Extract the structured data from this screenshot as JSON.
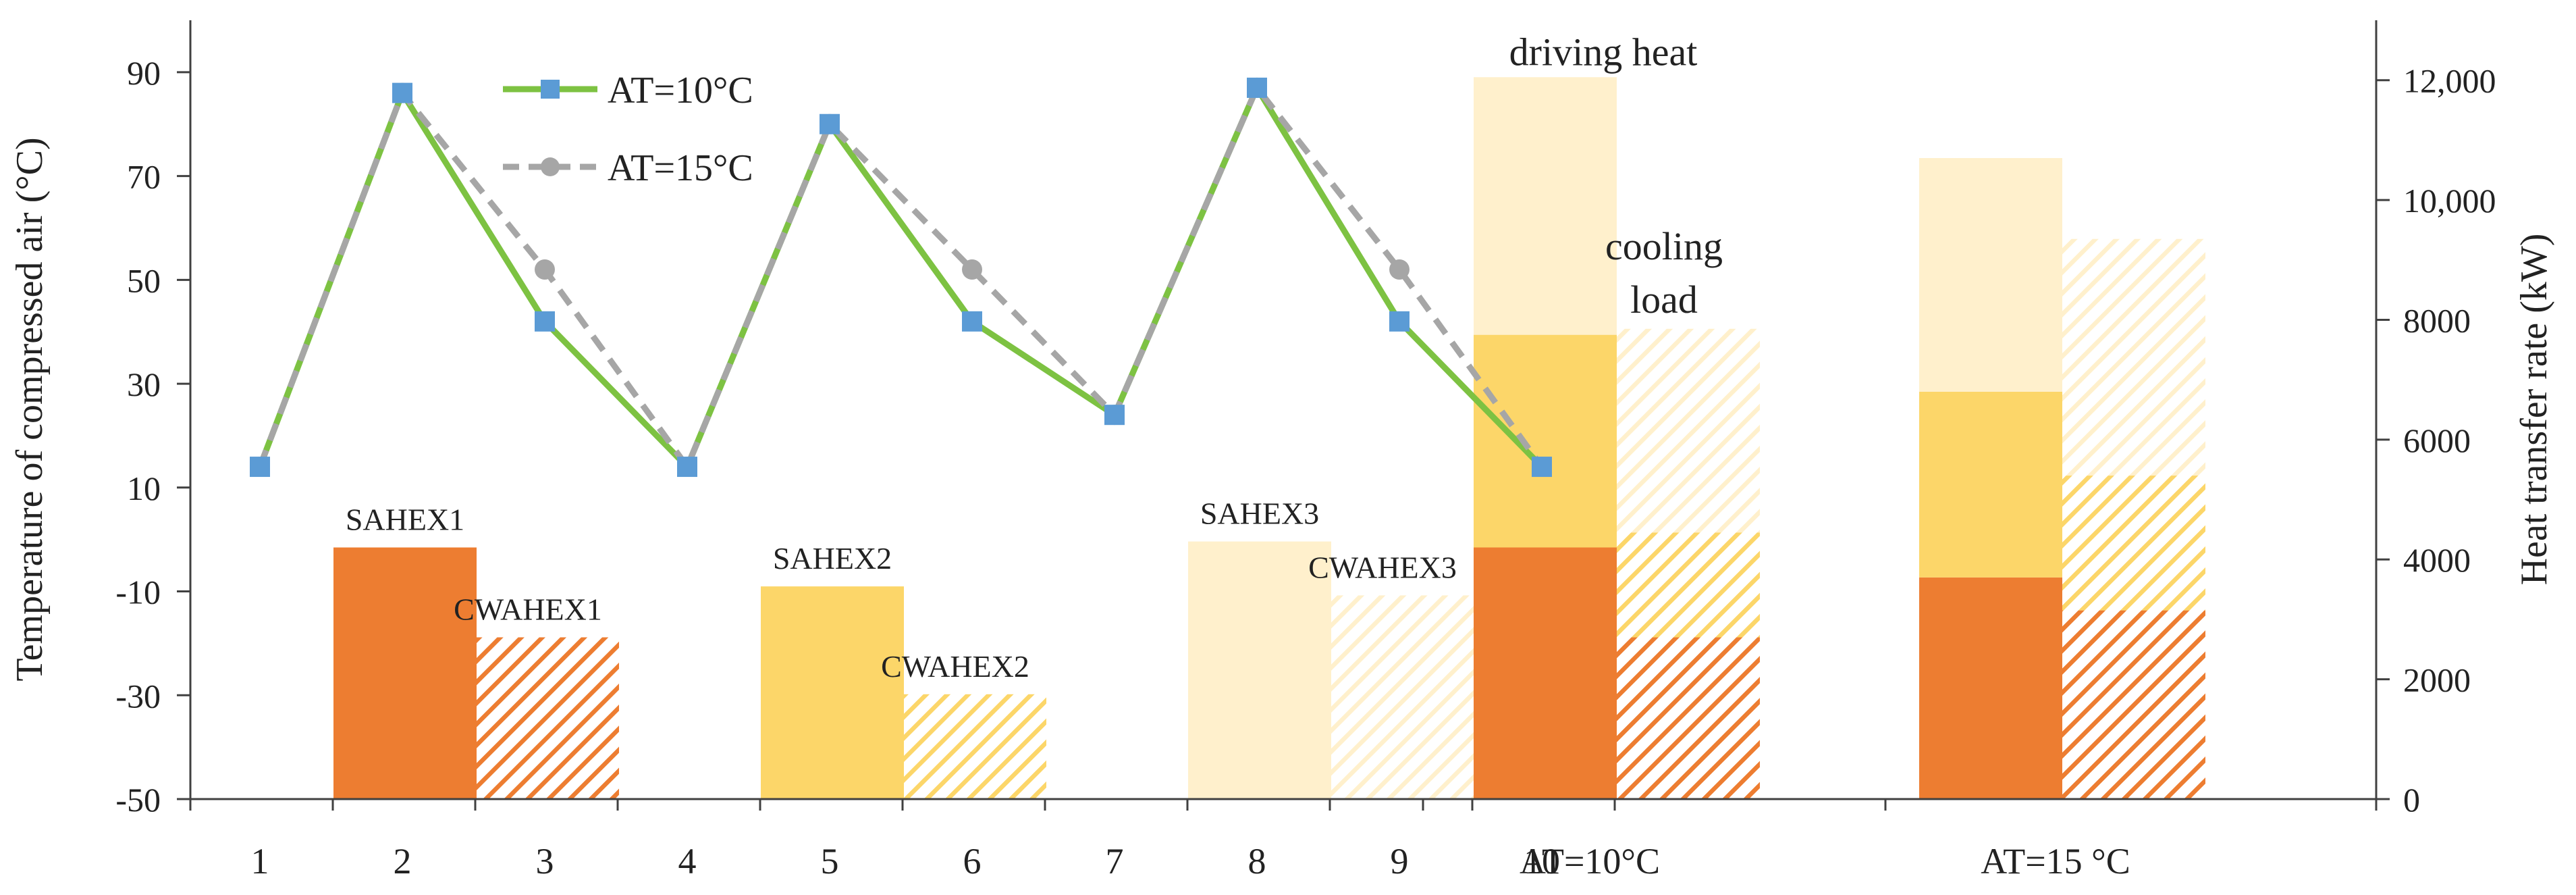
{
  "chart_data": {
    "type": "bar+line",
    "x_tick_labels": [
      "1",
      "2",
      "3",
      "4",
      "5",
      "6",
      "7",
      "8",
      "9",
      "10",
      "AT=10°C",
      "AT=15 °C"
    ],
    "y_left": {
      "label": "Temperature of compressed air (°C)",
      "ticks": [
        "90",
        "70",
        "50",
        "30",
        "10",
        "-10",
        "-30",
        "-50"
      ],
      "range": [
        -50,
        100
      ]
    },
    "y_right": {
      "label": "Heat transfer rate (kW)",
      "ticks": [
        "12,000",
        "10,000",
        "8000",
        "6000",
        "4000",
        "2000",
        "0"
      ],
      "range": [
        0,
        13000
      ]
    },
    "series": [
      {
        "name": "AT=10°C",
        "kind": "line",
        "color": "#7dc242",
        "marker_color": "#5b9bd5",
        "x": [
          1,
          2,
          3,
          4,
          5,
          6,
          7,
          8,
          9,
          10
        ],
        "values": [
          14,
          86,
          42,
          14,
          80,
          42,
          24,
          87,
          42,
          14
        ]
      },
      {
        "name": "AT=15°C",
        "kind": "line",
        "color": "#a6a6a6",
        "marker_color": "#a6a6a6",
        "x": [
          1,
          2,
          3,
          4,
          5,
          6,
          7,
          8,
          9,
          10
        ],
        "values": [
          14,
          86,
          52,
          14,
          80,
          52,
          24,
          87,
          52,
          14
        ]
      }
    ],
    "hex_bars": [
      {
        "label": "SAHEX1",
        "position": 2,
        "kw": 4200,
        "color": "#ed7d31",
        "hatched": false
      },
      {
        "label": "CWAHEX1",
        "position": 3,
        "kw": 2700,
        "color": "#ed7d31",
        "hatched": true
      },
      {
        "label": "SAHEX2",
        "position": 5,
        "kw": 3550,
        "color": "#fcd669",
        "hatched": false
      },
      {
        "label": "CWAHEX2",
        "position": 6,
        "kw": 1750,
        "color": "#fcd669",
        "hatched": true
      },
      {
        "label": "SAHEX3",
        "position": 8,
        "kw": 4300,
        "color": "#fff0cc",
        "hatched": false
      },
      {
        "label": "CWAHEX3",
        "position": 9,
        "kw": 3400,
        "color": "#fff0cc",
        "hatched": true
      }
    ],
    "stacked_groups": [
      {
        "label": "AT=10°C",
        "driving_heat": [
          4200,
          3550,
          4300
        ],
        "cooling_load": [
          2700,
          1750,
          3400
        ]
      },
      {
        "label": "AT=15 °C",
        "driving_heat": [
          3700,
          3100,
          3900
        ],
        "cooling_load": [
          3150,
          2250,
          3950
        ]
      }
    ],
    "annotations": {
      "driving": "driving heat",
      "cooling_line1": "cooling",
      "cooling_line2": "load"
    },
    "legend": [
      {
        "label": "AT=10°C",
        "line_color": "#7dc242",
        "marker": "square",
        "marker_color": "#5b9bd5",
        "dashed": false
      },
      {
        "label": "AT=15°C",
        "line_color": "#a6a6a6",
        "marker": "circle",
        "marker_color": "#a6a6a6",
        "dashed": true
      }
    ],
    "legend_position": "top-left",
    "stack_colors": [
      "#ed7d31",
      "#fcd669",
      "#fff0cc"
    ]
  }
}
